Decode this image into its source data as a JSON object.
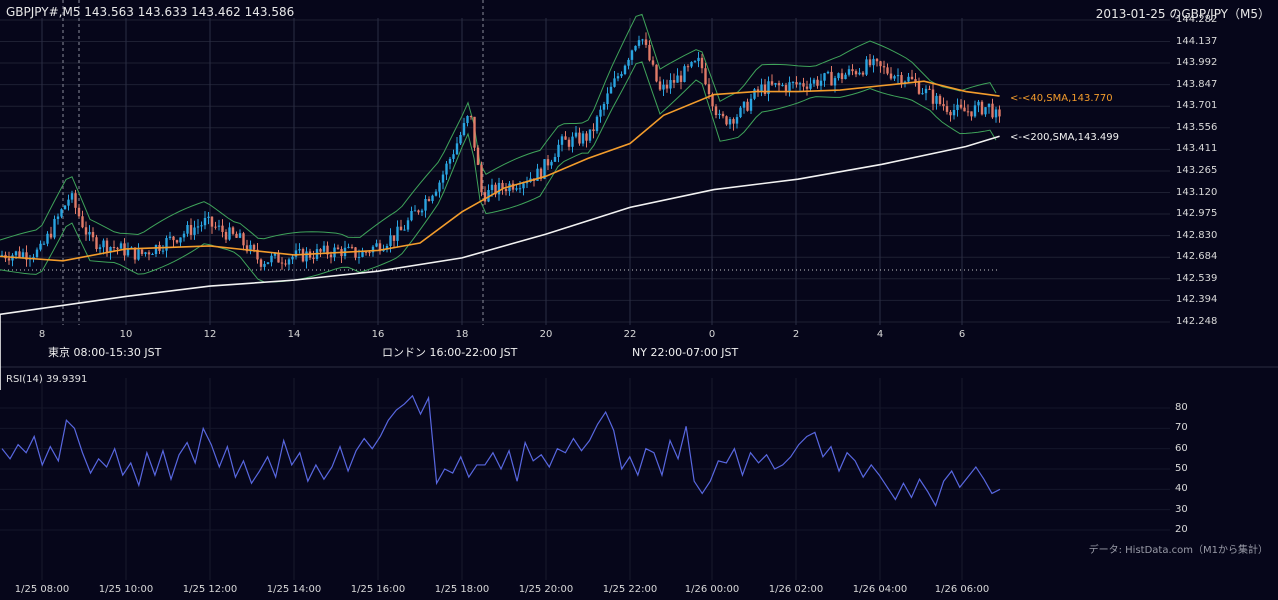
{
  "header": {
    "symbol_info": "GBPJPY#,M5 143.563 143.633 143.462 143.586",
    "title": "2013-01-25 のGBP/JPY（M5）"
  },
  "price_axis": {
    "ticks": [
      "144.282",
      "144.137",
      "143.992",
      "143.847",
      "143.701",
      "143.556",
      "143.411",
      "143.265",
      "143.120",
      "142.975",
      "142.830",
      "142.684",
      "142.539",
      "142.394",
      "142.248"
    ]
  },
  "hour_axis": {
    "ticks": [
      "8",
      "10",
      "12",
      "14",
      "16",
      "18",
      "20",
      "22",
      "0",
      "2",
      "4",
      "6"
    ]
  },
  "sessions": [
    {
      "label": "東京 08:00-15:30 JST",
      "color": "#234b7a"
    },
    {
      "label": "ロンドン 16:00-22:00 JST",
      "color": "#7a5512"
    },
    {
      "label": "NY 22:00-07:00 JST",
      "color": "#245c3c"
    }
  ],
  "annotations": {
    "sma40": "<-<40,SMA,143.770",
    "sma200": "<-<200,SMA,143.499"
  },
  "rsi": {
    "label": "RSI(14) 39.9391",
    "ticks": [
      "80",
      "70",
      "60",
      "50",
      "40",
      "30",
      "20"
    ]
  },
  "source_note": "データ: HistData.com（M1から集計）",
  "time_axis": {
    "ticks": [
      "1/25 08:00",
      "1/25 10:00",
      "1/25 12:00",
      "1/25 14:00",
      "1/25 16:00",
      "1/25 18:00",
      "1/25 20:00",
      "1/25 22:00",
      "1/26 00:00",
      "1/26 02:00",
      "1/26 04:00",
      "1/26 06:00"
    ]
  },
  "colors": {
    "background": "#06061a",
    "bull": "#2aa4e0",
    "bear": "#e07a68",
    "sma40": "#f39c2c",
    "sma200": "#f2f2f2",
    "bollinger": "#3fa35a",
    "rsi": "#5867e0",
    "grid": "#1e2033"
  },
  "chart_data": [
    {
      "type": "candlestick",
      "title": "2013-01-25 のGBP/JPY（M5）",
      "ylim": [
        142.248,
        144.282
      ],
      "x_hours": [
        "8",
        "10",
        "12",
        "14",
        "16",
        "18",
        "20",
        "22",
        "0",
        "2",
        "4",
        "6"
      ],
      "last_bar": {
        "open": 143.563,
        "high": 143.633,
        "low": 143.462,
        "close": 143.586
      },
      "sma40_close_path": [
        [
          7.0,
          142.69
        ],
        [
          8.5,
          142.66
        ],
        [
          10,
          142.74
        ],
        [
          12,
          142.76
        ],
        [
          14,
          142.7
        ],
        [
          16,
          142.73
        ],
        [
          17,
          142.78
        ],
        [
          18,
          142.99
        ],
        [
          19,
          143.15
        ],
        [
          20,
          143.23
        ],
        [
          21,
          143.35
        ],
        [
          22,
          143.45
        ],
        [
          22.8,
          143.64
        ],
        [
          0,
          143.78
        ],
        [
          1,
          143.8
        ],
        [
          2,
          143.8
        ],
        [
          3,
          143.81
        ],
        [
          4,
          143.84
        ],
        [
          5,
          143.87
        ],
        [
          6,
          143.8
        ],
        [
          6.8,
          143.77
        ]
      ],
      "sma200_path": [
        [
          7.0,
          142.3
        ],
        [
          10,
          142.42
        ],
        [
          12,
          142.49
        ],
        [
          14,
          142.53
        ],
        [
          16,
          142.59
        ],
        [
          18,
          142.68
        ],
        [
          20,
          142.84
        ],
        [
          22,
          143.02
        ],
        [
          0,
          143.14
        ],
        [
          2,
          143.21
        ],
        [
          4,
          143.31
        ],
        [
          6,
          143.43
        ],
        [
          6.8,
          143.499
        ]
      ],
      "series": [
        {
          "name": "40,SMA",
          "last": 143.77
        },
        {
          "name": "200,SMA",
          "last": 143.499
        }
      ]
    },
    {
      "type": "line",
      "title": "RSI(14) 39.9391",
      "ylim": [
        20,
        80
      ],
      "last": 39.9391,
      "values": [
        60,
        55,
        62,
        58,
        66,
        52,
        61,
        54,
        74,
        70,
        58,
        48,
        55,
        51,
        60,
        47,
        53,
        42,
        58,
        47,
        59,
        45,
        57,
        63,
        53,
        70,
        62,
        51,
        61,
        46,
        54,
        43,
        49,
        56,
        46,
        64,
        52,
        58,
        44,
        52,
        45,
        51,
        61,
        49,
        59,
        65,
        60,
        66,
        74,
        79,
        82,
        86,
        77,
        85,
        43,
        50,
        48,
        56,
        46,
        52,
        52,
        58,
        50,
        59,
        44,
        63,
        54,
        57,
        51,
        60,
        58,
        65,
        59,
        64,
        72,
        78,
        69,
        50,
        56,
        47,
        60,
        58,
        47,
        64,
        55,
        71,
        44,
        38,
        44,
        54,
        53,
        60,
        47,
        58,
        53,
        57,
        50,
        52,
        56,
        62,
        66,
        68,
        56,
        61,
        49,
        58,
        54,
        46,
        52,
        47,
        41,
        35,
        43,
        36,
        45,
        39,
        32,
        44,
        49,
        41,
        46,
        51,
        45,
        38,
        40
      ]
    }
  ]
}
